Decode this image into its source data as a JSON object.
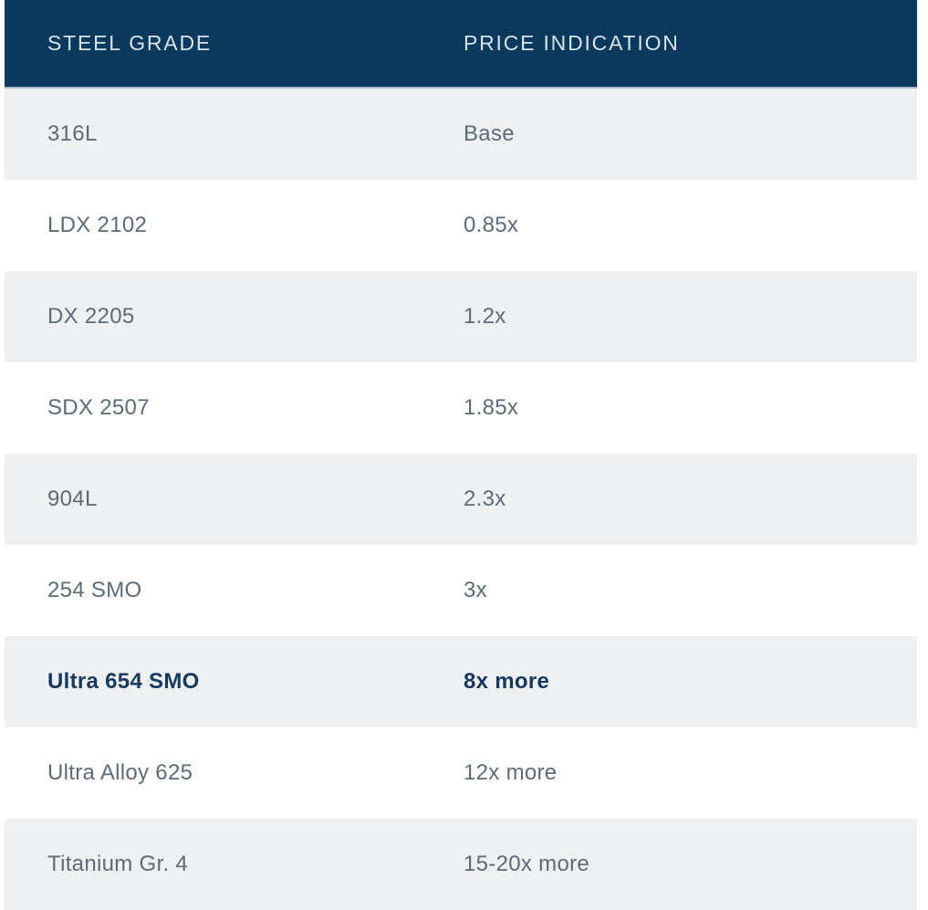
{
  "table": {
    "columns": [
      {
        "label": "STEEL GRADE"
      },
      {
        "label": "PRICE INDICATION"
      }
    ],
    "rows": [
      {
        "grade": "316L",
        "price": "Base",
        "highlight": false
      },
      {
        "grade": "LDX 2102",
        "price": "0.85x",
        "highlight": false
      },
      {
        "grade": "DX 2205",
        "price": "1.2x",
        "highlight": false
      },
      {
        "grade": "SDX 2507",
        "price": "1.85x",
        "highlight": false
      },
      {
        "grade": "904L",
        "price": "2.3x",
        "highlight": false
      },
      {
        "grade": "254 SMO",
        "price": "3x",
        "highlight": false
      },
      {
        "grade": "Ultra 654 SMO",
        "price": "8x more",
        "highlight": true
      },
      {
        "grade": "Ultra Alloy 625",
        "price": "12x more",
        "highlight": false
      },
      {
        "grade": "Titanium Gr. 4",
        "price": "15-20x more",
        "highlight": false
      }
    ]
  },
  "colors": {
    "header-bg": "#09395c",
    "header-text": "#d7e2eb",
    "header-border": "#a9b8c7",
    "row-alt-bg": "#eef0f2",
    "row-bg": "#ffffff",
    "text": "#5d6b79",
    "highlight-text": "#17395e"
  },
  "chart_data": {
    "type": "table",
    "title": "",
    "columns": [
      "STEEL GRADE",
      "PRICE INDICATION"
    ],
    "rows": [
      [
        "316L",
        "Base"
      ],
      [
        "LDX 2102",
        "0.85x"
      ],
      [
        "DX 2205",
        "1.2x"
      ],
      [
        "SDX 2507",
        "1.85x"
      ],
      [
        "904L",
        "2.3x"
      ],
      [
        "254 SMO",
        "3x"
      ],
      [
        "Ultra 654 SMO",
        "8x more"
      ],
      [
        "Ultra Alloy 625",
        "12x more"
      ],
      [
        "Titanium Gr. 4",
        "15-20x more"
      ]
    ],
    "price_multiplier_vs_316L": {
      "316L": 1,
      "LDX 2102": 0.85,
      "DX 2205": 1.2,
      "SDX 2507": 1.85,
      "904L": 2.3,
      "254 SMO": 3,
      "Ultra 654 SMO": 8,
      "Ultra Alloy 625": 12,
      "Titanium Gr. 4": [
        15,
        20
      ]
    },
    "highlighted_row": "Ultra 654 SMO",
    "layout": {
      "zebra_striping": true,
      "header_background": "#09395c"
    }
  }
}
